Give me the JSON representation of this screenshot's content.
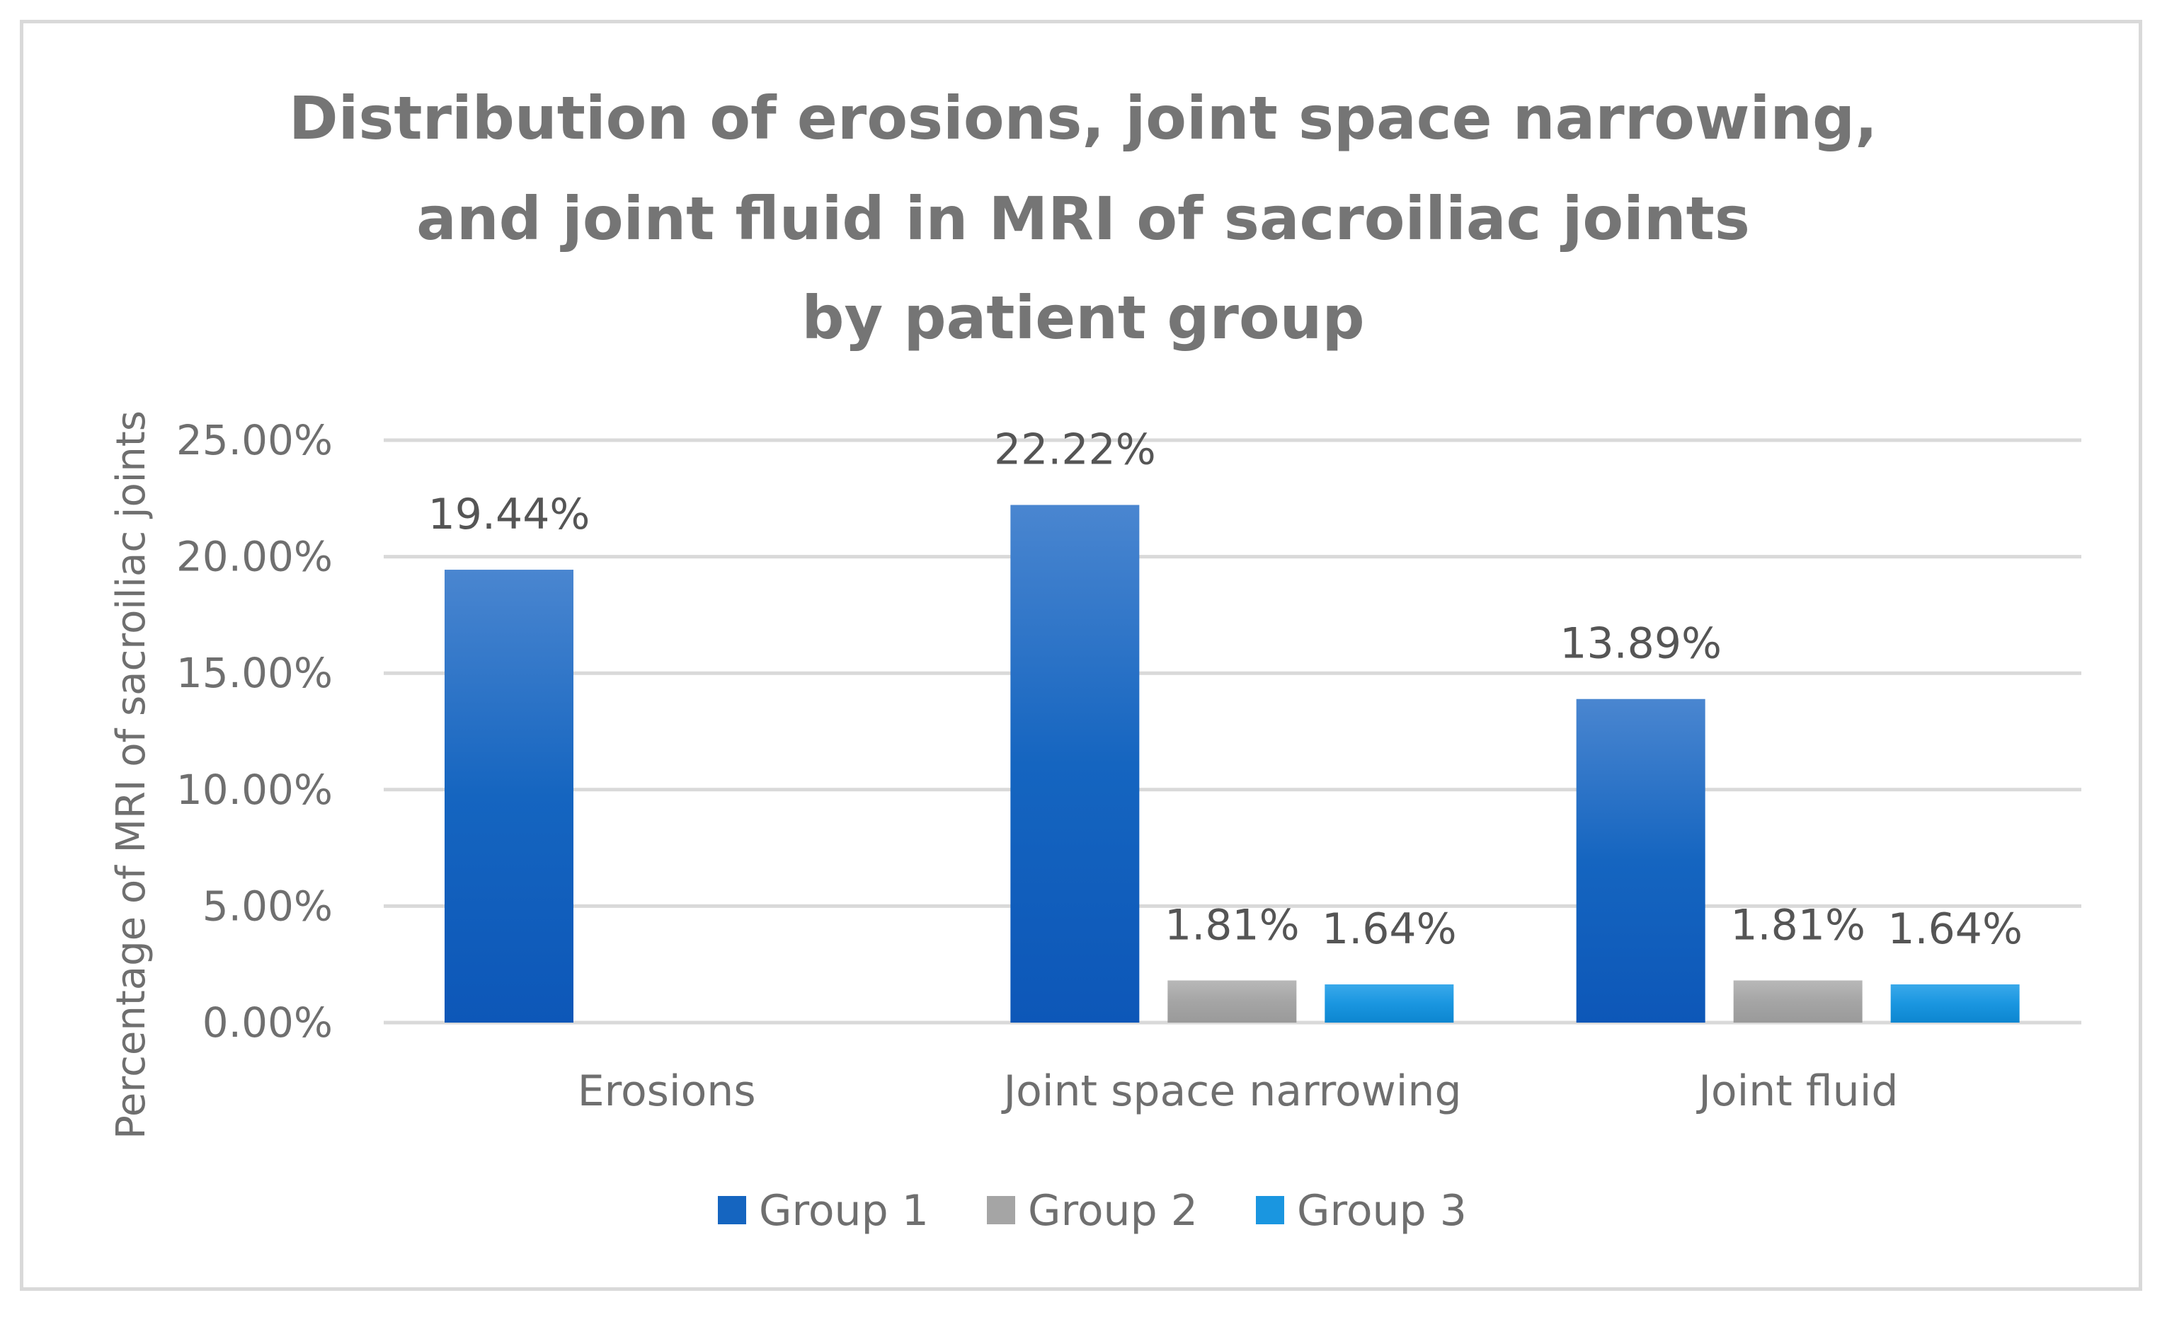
{
  "chart_data": {
    "type": "bar",
    "title": [
      "Distribution of erosions, joint space narrowing,",
      "and joint fluid in MRI of sacroiliac joints",
      "by patient group"
    ],
    "xlabel": "",
    "ylabel": "Percentage of MRI of sacroiliac joints",
    "ylim": [
      0,
      25
    ],
    "yticks": [
      0,
      5,
      10,
      15,
      20,
      25
    ],
    "ytick_labels": [
      "0.00%",
      "5.00%",
      "10.00%",
      "15.00%",
      "20.00%",
      "25.00%"
    ],
    "grid": true,
    "legend_position": "bottom",
    "categories": [
      "Erosions",
      "Joint space narrowing",
      "Joint fluid"
    ],
    "series": [
      {
        "name": "Group 1",
        "values": [
          19.44,
          22.22,
          13.89
        ],
        "labels": [
          "19.44%",
          "22.22%",
          "13.89%"
        ],
        "color": "#1565c0",
        "color_light": "#4a86d0",
        "color_dark": "#0d57b8"
      },
      {
        "name": "Group 2",
        "values": [
          0,
          1.81,
          1.81
        ],
        "labels": [
          "",
          "1.81%",
          "1.81%"
        ],
        "color": "#a5a5a5",
        "color_light": "#b8b8b8",
        "color_dark": "#9a9a9a"
      },
      {
        "name": "Group 3",
        "values": [
          0,
          1.64,
          1.64
        ],
        "labels": [
          "",
          "1.64%",
          "1.64%"
        ],
        "color": "#1a96e0",
        "color_light": "#3aa9ea",
        "color_dark": "#0d86d0"
      }
    ]
  }
}
